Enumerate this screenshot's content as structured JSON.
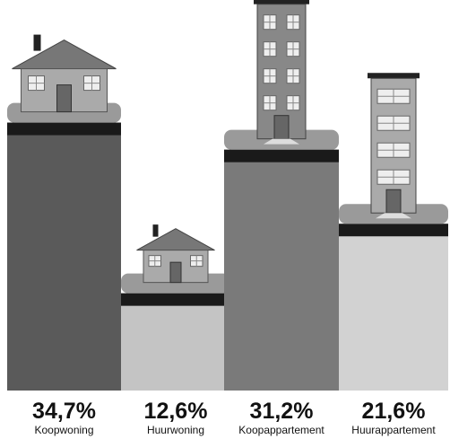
{
  "chart_data": {
    "type": "bar",
    "categories": [
      "Koopwoning",
      "Huurwoning",
      "Koopappartement",
      "Huurappartement"
    ],
    "values": [
      34.7,
      12.6,
      31.2,
      21.6
    ],
    "value_labels": [
      "34,7%",
      "12,6%",
      "31,2%",
      "21,6%"
    ],
    "colors": [
      "#5a5a5a",
      "#c4c4c4",
      "#7a7a7a",
      "#d2d2d2"
    ]
  }
}
